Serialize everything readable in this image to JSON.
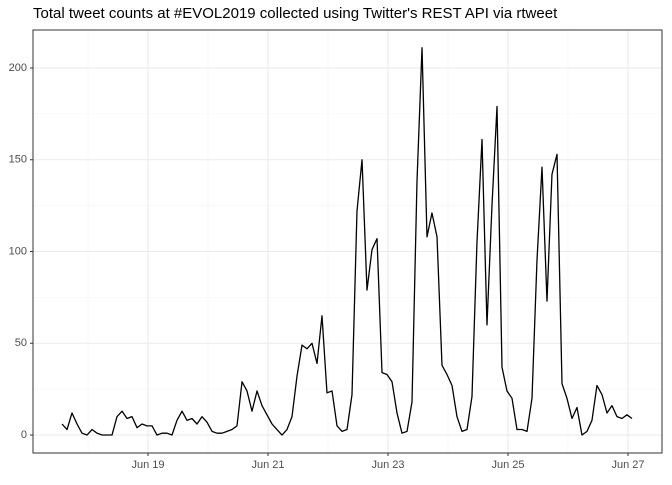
{
  "chart_data": {
    "type": "line",
    "title": "Total tweet counts at #EVOL2019 collected using Twitter's REST API via rtweet",
    "x": [
      17.567,
      17.65,
      17.733,
      17.817,
      17.9,
      17.983,
      18.067,
      18.15,
      18.233,
      18.317,
      18.4,
      18.483,
      18.567,
      18.65,
      18.733,
      18.817,
      18.9,
      18.983,
      19.067,
      19.15,
      19.233,
      19.317,
      19.4,
      19.483,
      19.567,
      19.65,
      19.733,
      19.817,
      19.9,
      19.983,
      20.067,
      20.15,
      20.233,
      20.317,
      20.4,
      20.483,
      20.567,
      20.65,
      20.733,
      20.817,
      20.9,
      20.983,
      21.067,
      21.15,
      21.233,
      21.317,
      21.4,
      21.483,
      21.567,
      21.65,
      21.733,
      21.817,
      21.9,
      21.983,
      22.067,
      22.15,
      22.233,
      22.317,
      22.4,
      22.483,
      22.567,
      22.65,
      22.733,
      22.817,
      22.9,
      22.983,
      23.067,
      23.15,
      23.233,
      23.317,
      23.4,
      23.483,
      23.567,
      23.65,
      23.733,
      23.817,
      23.9,
      23.983,
      24.067,
      24.15,
      24.233,
      24.317,
      24.4,
      24.483,
      24.567,
      24.65,
      24.733,
      24.817,
      24.9,
      24.983,
      25.067,
      25.15,
      25.233,
      25.317,
      25.4,
      25.483,
      25.567,
      25.65,
      25.733,
      25.817,
      25.9,
      25.983,
      26.067,
      26.15,
      26.233,
      26.317,
      26.4,
      26.483,
      26.567,
      26.65,
      26.733,
      26.817,
      26.9,
      26.983,
      27.067
    ],
    "series": [
      {
        "color": "#000000",
        "values": [
          6,
          3,
          12,
          6,
          1,
          0,
          3,
          1,
          0,
          0,
          0,
          10,
          13,
          9,
          10,
          4,
          6,
          5,
          5,
          0,
          1,
          1,
          0,
          8,
          13,
          8,
          9,
          6,
          10,
          7,
          2,
          1,
          1,
          2,
          3,
          5,
          29,
          24,
          13,
          24,
          16,
          11,
          6,
          3,
          0,
          3,
          10,
          32,
          49,
          47,
          50,
          39,
          65,
          23,
          24,
          5,
          2,
          3,
          22,
          122,
          150,
          79,
          101,
          107,
          34,
          33,
          29,
          12,
          1,
          2,
          18,
          138,
          211,
          108,
          121,
          108,
          38,
          33,
          27,
          10,
          2,
          3,
          21,
          105,
          161,
          60,
          125,
          179,
          37,
          24,
          20,
          3,
          3,
          2,
          20,
          95,
          146,
          73,
          142,
          153,
          28,
          20,
          9,
          15,
          0,
          2,
          8,
          27,
          22,
          12,
          16,
          10,
          9,
          11,
          9
        ]
      }
    ],
    "xlim": [
      17.083,
      27.567
    ],
    "xticks": [
      {
        "value": 19,
        "label": "Jun 19"
      },
      {
        "value": 21,
        "label": "Jun 21"
      },
      {
        "value": 23,
        "label": "Jun 23"
      },
      {
        "value": 25,
        "label": "Jun 25"
      },
      {
        "value": 27,
        "label": "Jun 27"
      }
    ],
    "minor_xticks": [
      18,
      20,
      22,
      24,
      26
    ],
    "ylim": [
      -9.8,
      220.7
    ],
    "yticks": [
      0,
      50,
      100,
      150,
      200
    ],
    "minor_yticks": [
      25,
      75,
      125,
      175
    ],
    "grid": true
  }
}
